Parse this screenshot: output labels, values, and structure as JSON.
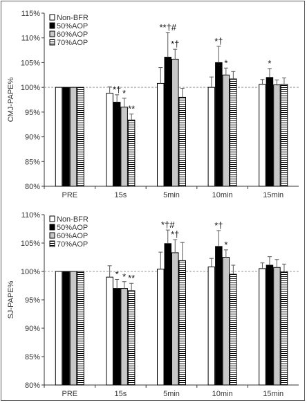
{
  "chart_data": [
    {
      "type": "bar",
      "title": "",
      "ylabel": "CMJ-PAPE%",
      "xlabel": "",
      "ylim": [
        80,
        115
      ],
      "yticks": [
        80,
        85,
        90,
        95,
        100,
        105,
        110,
        115
      ],
      "ytick_labels": [
        "80%",
        "85%",
        "90%",
        "95%",
        "100%",
        "105%",
        "110%",
        "115%"
      ],
      "grid": false,
      "reference_line": 100,
      "legend_placement": "top-left",
      "categories": [
        "PRE",
        "15s",
        "5min",
        "10min",
        "15min"
      ],
      "series": [
        {
          "name": "Non-BFR",
          "values": [
            100,
            98.8,
            100.8,
            100.0,
            100.6
          ],
          "errors": [
            0,
            1.3,
            3.2,
            2.1,
            1.0
          ]
        },
        {
          "name": "50%AOP",
          "values": [
            100,
            97.0,
            106.1,
            105.0,
            102.0
          ],
          "errors": [
            0,
            1.5,
            5.0,
            3.3,
            1.8
          ]
        },
        {
          "name": "60%AOP",
          "values": [
            100,
            96.0,
            105.7,
            102.5,
            100.5
          ],
          "errors": [
            0,
            1.8,
            2.0,
            1.4,
            1.0
          ]
        },
        {
          "name": "70%AOP",
          "values": [
            100,
            93.4,
            98.0,
            101.7,
            100.6
          ],
          "errors": [
            0,
            1.2,
            1.8,
            1.5,
            1.3
          ]
        }
      ],
      "annotations": [
        {
          "category": "15s",
          "series": "50%AOP",
          "text": "*†"
        },
        {
          "category": "15s",
          "series": "60%AOP",
          "text": "*"
        },
        {
          "category": "15s",
          "series": "70%AOP",
          "text": "**"
        },
        {
          "category": "5min",
          "series": "50%AOP",
          "text": "**†#"
        },
        {
          "category": "5min",
          "series": "60%AOP",
          "text": "*†"
        },
        {
          "category": "10min",
          "series": "50%AOP",
          "text": "*†"
        },
        {
          "category": "10min",
          "series": "60%AOP",
          "text": "*"
        },
        {
          "category": "15min",
          "series": "50%AOP",
          "text": "*"
        }
      ]
    },
    {
      "type": "bar",
      "title": "",
      "ylabel": "SJ-PAPE%",
      "xlabel": "",
      "ylim": [
        80,
        110
      ],
      "yticks": [
        80,
        85,
        90,
        95,
        100,
        105,
        110
      ],
      "ytick_labels": [
        "80%",
        "85%",
        "90%",
        "95%",
        "100%",
        "105%",
        "110%"
      ],
      "grid": false,
      "reference_line": 100,
      "legend_placement": "top-left",
      "categories": [
        "PRE",
        "15s",
        "5min",
        "10min",
        "15min"
      ],
      "series": [
        {
          "name": "Non-BFR",
          "values": [
            100,
            99.0,
            100.4,
            100.8,
            100.5
          ],
          "errors": [
            0,
            2.0,
            3.0,
            1.5,
            1.0
          ]
        },
        {
          "name": "50%AOP",
          "values": [
            100,
            97.0,
            104.9,
            104.4,
            101.1
          ],
          "errors": [
            0,
            1.6,
            2.4,
            2.8,
            1.5
          ]
        },
        {
          "name": "60%AOP",
          "values": [
            100,
            97.0,
            103.3,
            102.5,
            100.7
          ],
          "errors": [
            0,
            1.2,
            2.3,
            1.3,
            1.4
          ]
        },
        {
          "name": "70%AOP",
          "values": [
            100,
            96.6,
            101.9,
            99.5,
            99.9
          ],
          "errors": [
            0,
            1.3,
            3.2,
            1.6,
            1.4
          ]
        }
      ],
      "annotations": [
        {
          "category": "15s",
          "series": "50%AOP",
          "text": "*"
        },
        {
          "category": "15s",
          "series": "60%AOP",
          "text": "*"
        },
        {
          "category": "15s",
          "series": "70%AOP",
          "text": "**"
        },
        {
          "category": "5min",
          "series": "50%AOP",
          "text": "*†#"
        },
        {
          "category": "5min",
          "series": "60%AOP",
          "text": "*†"
        },
        {
          "category": "10min",
          "series": "50%AOP",
          "text": "*†"
        },
        {
          "category": "10min",
          "series": "60%AOP",
          "text": "*"
        }
      ]
    }
  ],
  "style": {
    "bar_outline": "#000000",
    "series_fills": [
      "#ffffff",
      "#000000",
      "#c8c8c8",
      "hatch"
    ],
    "axis_color": "#333333",
    "reference_line_color": "#999999"
  }
}
